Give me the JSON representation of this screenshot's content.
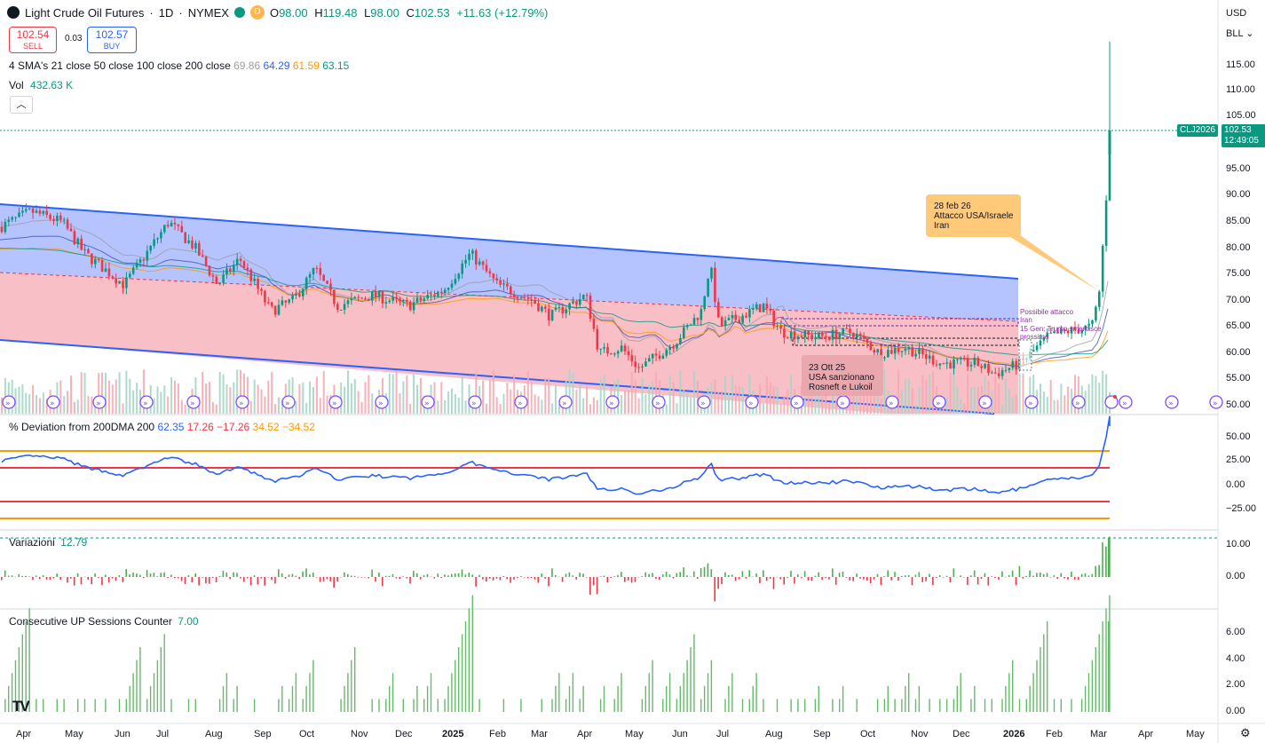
{
  "header": {
    "symbol": "Light Crude Oil Futures",
    "interval": "1D",
    "exchange": "NYMEX",
    "separator": "·",
    "badge": "D",
    "ohlc": {
      "o_label": "O",
      "o": "98.00",
      "h_label": "H",
      "h": "119.48",
      "l_label": "L",
      "l": "98.00",
      "c_label": "C",
      "c": "102.53",
      "change": "+11.63 (+12.79%)"
    }
  },
  "trade": {
    "sell_price": "102.54",
    "sell_label": "SELL",
    "spread": "0.03",
    "buy_price": "102.57",
    "buy_label": "BUY"
  },
  "indicators": {
    "sma_label": "4 SMA's 21 close 50 close 100 close 200 close",
    "sma_values": [
      "69.86",
      "64.29",
      "61.59",
      "63.15"
    ],
    "sma_colors": [
      "#9e9e9e",
      "#2962ff",
      "#ff9800",
      "#089981"
    ],
    "vol_label": "Vol",
    "vol_value": "432.63 K",
    "collapse_icon": "chevron-up-icon"
  },
  "currency": "USD",
  "unit": "BLL",
  "price_axis": [
    "115.00",
    "110.00",
    "105.00",
    "95.00",
    "90.00",
    "85.00",
    "80.00",
    "75.00",
    "70.00",
    "65.00",
    "60.00",
    "55.00",
    "50.00"
  ],
  "price_tag": {
    "symbol": "CLJ2026",
    "price": "102.53",
    "countdown": "12:49:05"
  },
  "annotations": {
    "a1": "28 feb 26\nAttacco USA/Israele\nIran",
    "a2": "23 Ott 25\nUSA sanzionano\nRosneft e Lukoil",
    "a3": "Possibile attacco\nIran",
    "a4": "15 Gen: Trump smentisce\nprossimo"
  },
  "deviation": {
    "label": "% Deviation from 200DMA 200",
    "values": [
      "62.35",
      "17.26",
      "−17.26",
      "34.52",
      "−34.52"
    ],
    "colors": [
      "#2962ff",
      "#f23645",
      "#f23645",
      "#ff9800",
      "#ff9800"
    ],
    "axis": [
      "50.00",
      "25.00",
      "0.00",
      "−25.00"
    ]
  },
  "variazioni": {
    "label": "Variazioni",
    "value": "12.79",
    "axis": [
      "10.00",
      "0.00"
    ]
  },
  "consecutive": {
    "label": "Consecutive UP Sessions Counter",
    "value": "7.00",
    "axis": [
      "6.00",
      "4.00",
      "2.00",
      "0.00"
    ]
  },
  "time_axis": [
    "Apr",
    "May",
    "Jun",
    "Jul",
    "Aug",
    "Sep",
    "Oct",
    "Nov",
    "Dec",
    "2025",
    "Feb",
    "Mar",
    "Apr",
    "May",
    "Jun",
    "Jul",
    "Aug",
    "Sep",
    "Oct",
    "Nov",
    "Dec",
    "2026",
    "Feb",
    "Mar",
    "Apr",
    "May"
  ],
  "logo": "TV"
}
